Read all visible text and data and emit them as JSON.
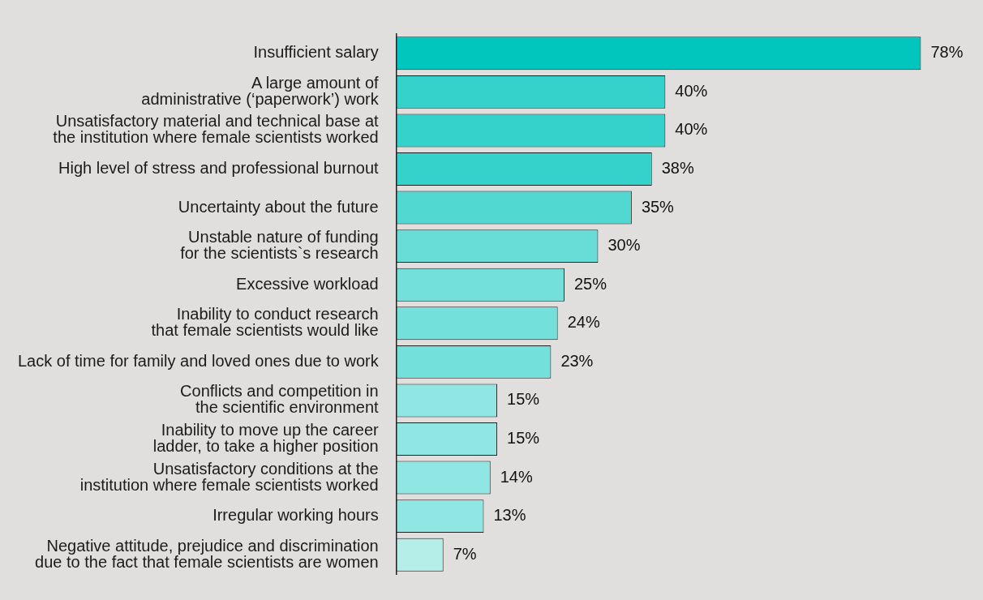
{
  "chart_data": {
    "type": "bar",
    "orientation": "horizontal",
    "categories": [
      "Insufficient salary",
      "A large amount of administrative (‘paperwork’) work",
      "Unsatisfactory material and technical base at the institution where female scientists worked",
      "High level of stress and professional burnout",
      "Uncertainty about the future",
      "Unstable nature of funding for the scientists`s research",
      "Excessive workload",
      "Inability to conduct research that female scientists would like",
      "Lack of time for family and loved ones due to work",
      "Conflicts and competition in the scientific environment",
      "Inability to move up the career ladder, to take a higher position",
      "Unsatisfactory conditions at the institution where female scientists worked",
      "Irregular working hours",
      "Negative attitude, prejudice and discrimination due to the fact that female scientists are women"
    ],
    "values": [
      78,
      40,
      40,
      38,
      35,
      30,
      25,
      24,
      23,
      15,
      15,
      14,
      13,
      7
    ],
    "value_labels": [
      "78%",
      "40%",
      "40%",
      "38%",
      "35%",
      "30%",
      "25%",
      "24%",
      "23%",
      "15%",
      "15%",
      "14%",
      "13%",
      "7%"
    ],
    "colors": [
      "#00c6bd",
      "#35d2cb",
      "#35d2cb",
      "#35d2cb",
      "#50d8d1",
      "#68ddd7",
      "#74e0db",
      "#74e0db",
      "#74e0db",
      "#8fe6e2",
      "#8fe6e2",
      "#8fe6e2",
      "#8fe6e2",
      "#b5ede9"
    ],
    "tick_labels": "y",
    "grid": false,
    "legend": false
  }
}
